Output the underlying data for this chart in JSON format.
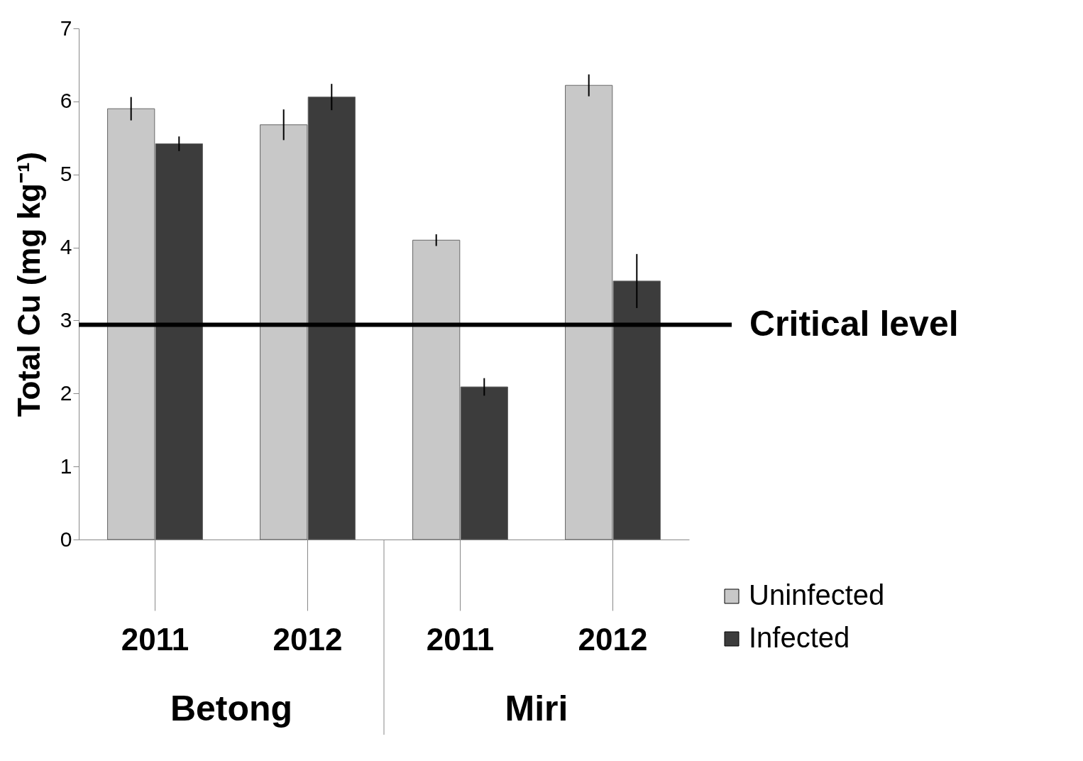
{
  "chart_data": {
    "type": "bar",
    "ylabel": "Total Cu (mg kg⁻¹)",
    "categories": [
      "2011",
      "2012",
      "2011",
      "2012"
    ],
    "series": [
      {
        "name": "Uninfected",
        "color": "#c8c8c8",
        "values": [
          5.9,
          5.68,
          4.1,
          6.22
        ],
        "errors": [
          0.16,
          0.21,
          0.08,
          0.15
        ]
      },
      {
        "name": "Infected",
        "color": "#3c3c3c",
        "values": [
          5.42,
          6.06,
          2.09,
          3.54
        ],
        "errors": [
          0.1,
          0.18,
          0.12,
          0.37
        ]
      }
    ],
    "ylim": [
      0,
      7
    ],
    "yticks": [
      0,
      1,
      2,
      3,
      4,
      5,
      6,
      7
    ],
    "grid": false,
    "legend": "bottom right",
    "ref_lines": [
      {
        "axis": "y",
        "value": 2.94,
        "label": "Critical level",
        "color": "#000000"
      }
    ],
    "annotations": [
      "Betong",
      "Miri"
    ]
  }
}
